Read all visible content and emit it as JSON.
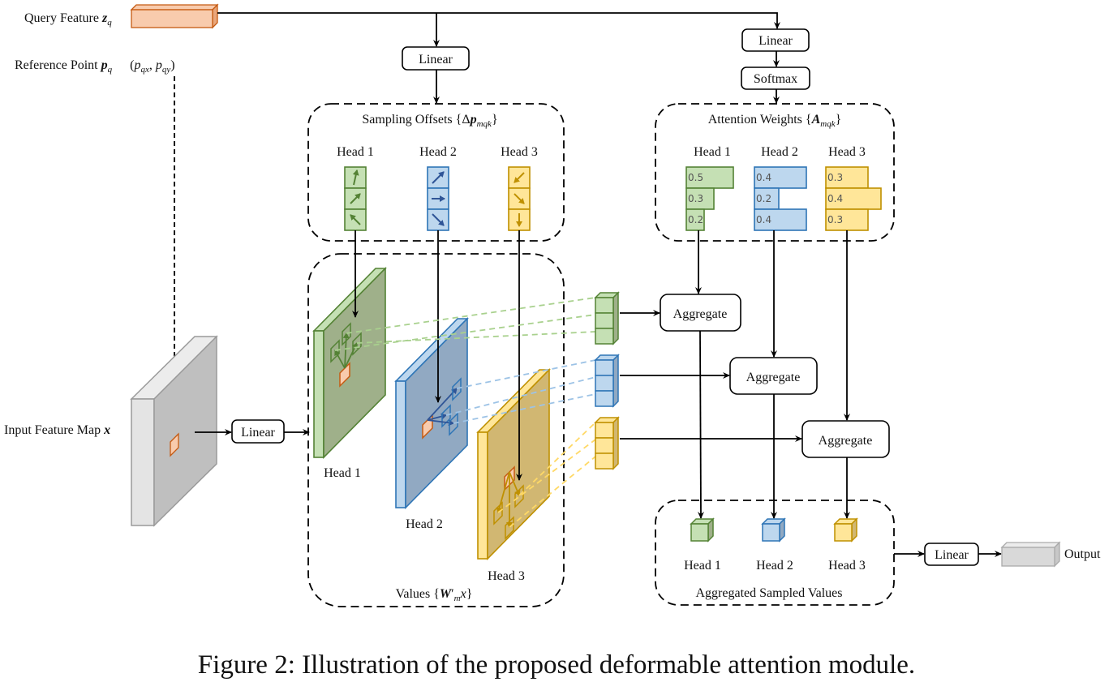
{
  "colors": {
    "green_fill": "#c5e0b4",
    "green_stroke": "#548235",
    "green_plane": "#9fb08a",
    "blue_fill": "#bdd7ee",
    "blue_stroke": "#2e75b6",
    "blue_plane": "#91a9c2",
    "yellow_fill": "#ffe699",
    "yellow_stroke": "#bf9000",
    "yellow_plane": "#d1b772",
    "orange_fill": "#f8cbad",
    "orange_stroke": "#c55a11",
    "gray_fill": "#d9d9d9",
    "gray_stroke": "#9a9a9a"
  },
  "query": {
    "label": "Query Feature ",
    "symbol": "z",
    "sub": "q"
  },
  "reference": {
    "label": "Reference Point ",
    "symbol": "p",
    "sub": "q",
    "coords_open": "(",
    "px": "p",
    "pxsub": "qx",
    "comma": ", ",
    "py": "p",
    "pysub": "qy",
    "coords_close": ")"
  },
  "input": {
    "label": "Input Feature Map ",
    "symbol": "x"
  },
  "linear_label": "Linear",
  "softmax_label": "Softmax",
  "aggregate_label": "Aggregate",
  "output_label": "Output",
  "sampling_offsets": {
    "title": "Sampling Offsets {Δ",
    "symbol": "p",
    "sub": "mqk",
    "close": "}"
  },
  "attention_weights": {
    "title": "Attention Weights {",
    "symbol": "A",
    "sub": "mqk",
    "close": "}"
  },
  "values": {
    "title": "Values {",
    "symbol": "W",
    "prime": "′",
    "sub": "m",
    "x": "x",
    "close": "}"
  },
  "aggregated": {
    "title": "Aggregated Sampled Values"
  },
  "heads": [
    "Head 1",
    "Head 2",
    "Head 3"
  ],
  "weights": [
    [
      "0.5",
      "0.3",
      "0.2"
    ],
    [
      "0.4",
      "0.2",
      "0.4"
    ],
    [
      "0.3",
      "0.4",
      "0.3"
    ]
  ],
  "caption": "Figure 2: Illustration of the proposed deformable attention module."
}
